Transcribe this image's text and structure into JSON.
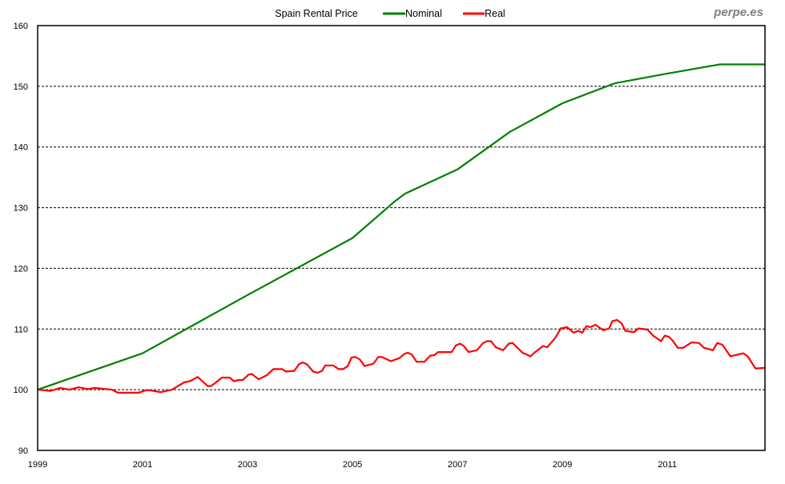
{
  "chart_data": {
    "type": "line",
    "title": "Spain Rental Price",
    "watermark": "perpe.es",
    "xlabel": "",
    "ylabel": "",
    "xlim": [
      1999,
      2012.86
    ],
    "ylim": [
      90,
      160
    ],
    "yticks": [
      90,
      100,
      110,
      120,
      130,
      140,
      150,
      160
    ],
    "xticks": [
      1999,
      2001,
      2003,
      2005,
      2007,
      2009,
      2011
    ],
    "grid": "horizontal dashed",
    "legend": "top-center",
    "series": [
      {
        "name": "Nominal",
        "color": "#008000",
        "x": [
          1999,
          2001,
          2003,
          2005,
          2005.8,
          2006,
          2007,
          2008,
          2009,
          2010,
          2011,
          2012,
          2012.86
        ],
        "y": [
          100,
          106,
          115.6,
          125,
          131,
          132.3,
          136.3,
          142.5,
          147.2,
          150.5,
          152.1,
          153.6,
          153.6
        ]
      },
      {
        "name": "Real",
        "color": "#ff0000",
        "x": [
          1999.02,
          1999.24,
          1999.43,
          1999.61,
          1999.78,
          1999.96,
          2000.08,
          2000.42,
          2000.53,
          2000.92,
          2001.06,
          2001.15,
          2001.34,
          2001.56,
          2001.79,
          2001.9,
          2002.05,
          2002.24,
          2002.3,
          2002.4,
          2002.51,
          2002.66,
          2002.74,
          2002.83,
          2002.91,
          2003.02,
          2003.08,
          2003.21,
          2003.37,
          2003.49,
          2003.66,
          2003.73,
          2003.89,
          2003.98,
          2004.05,
          2004.13,
          2004.25,
          2004.33,
          2004.42,
          2004.48,
          2004.63,
          2004.74,
          2004.82,
          2004.91,
          2004.98,
          2005.05,
          2005.14,
          2005.23,
          2005.4,
          2005.49,
          2005.56,
          2005.73,
          2005.89,
          2005.99,
          2006.05,
          2006.13,
          2006.22,
          2006.37,
          2006.48,
          2006.56,
          2006.63,
          2006.89,
          2006.97,
          2007.05,
          2007.12,
          2007.21,
          2007.37,
          2007.49,
          2007.56,
          2007.64,
          2007.73,
          2007.87,
          2007.98,
          2008.05,
          2008.24,
          2008.39,
          2008.48,
          2008.63,
          2008.71,
          2008.86,
          2008.97,
          2009.09,
          2009.21,
          2009.3,
          2009.38,
          2009.46,
          2009.53,
          2009.63,
          2009.78,
          2009.89,
          2009.95,
          2010.04,
          2010.13,
          2010.2,
          2010.37,
          2010.45,
          2010.62,
          2010.73,
          2010.88,
          2010.95,
          2011.03,
          2011.1,
          2011.2,
          2011.3,
          2011.46,
          2011.6,
          2011.7,
          2011.87,
          2011.95,
          2012.05,
          2012.2,
          2012.45,
          2012.53,
          2012.68,
          2012.86
        ],
        "y": [
          100.0,
          99.8,
          100.3,
          100.0,
          100.4,
          100.1,
          100.3,
          100.0,
          99.5,
          99.5,
          99.9,
          99.9,
          99.6,
          100.0,
          101.2,
          101.4,
          102.1,
          100.6,
          100.6,
          101.2,
          102.0,
          102.0,
          101.4,
          101.6,
          101.6,
          102.5,
          102.6,
          101.7,
          102.4,
          103.4,
          103.4,
          103.0,
          103.1,
          104.2,
          104.5,
          104.2,
          103.0,
          102.8,
          103.1,
          104.0,
          104.0,
          103.4,
          103.4,
          103.9,
          105.3,
          105.4,
          105.0,
          103.9,
          104.3,
          105.4,
          105.4,
          104.7,
          105.2,
          105.9,
          106.1,
          105.8,
          104.6,
          104.6,
          105.6,
          105.7,
          106.2,
          106.2,
          107.3,
          107.6,
          107.2,
          106.2,
          106.5,
          107.7,
          108.0,
          108.0,
          107.0,
          106.5,
          107.6,
          107.7,
          106.1,
          105.5,
          106.2,
          107.2,
          107.0,
          108.5,
          110.1,
          110.3,
          109.4,
          109.7,
          109.4,
          110.5,
          110.3,
          110.7,
          109.8,
          110.1,
          111.3,
          111.5,
          110.9,
          109.7,
          109.5,
          110.1,
          109.9,
          108.9,
          108.0,
          108.9,
          108.7,
          108.1,
          106.9,
          106.9,
          107.8,
          107.7,
          106.9,
          106.5,
          107.7,
          107.4,
          105.5,
          106.0,
          105.5,
          103.5,
          103.6
        ]
      }
    ]
  }
}
